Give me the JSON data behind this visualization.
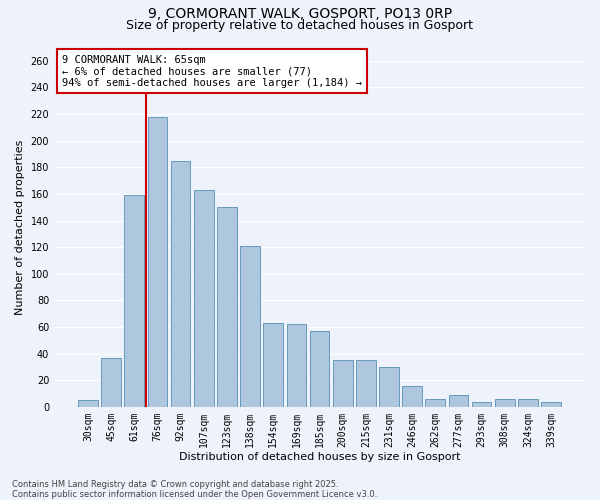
{
  "title1": "9, CORMORANT WALK, GOSPORT, PO13 0RP",
  "title2": "Size of property relative to detached houses in Gosport",
  "xlabel": "Distribution of detached houses by size in Gosport",
  "ylabel": "Number of detached properties",
  "categories": [
    "30sqm",
    "45sqm",
    "61sqm",
    "76sqm",
    "92sqm",
    "107sqm",
    "123sqm",
    "138sqm",
    "154sqm",
    "169sqm",
    "185sqm",
    "200sqm",
    "215sqm",
    "231sqm",
    "246sqm",
    "262sqm",
    "277sqm",
    "293sqm",
    "308sqm",
    "324sqm",
    "339sqm"
  ],
  "values": [
    5,
    37,
    159,
    218,
    185,
    163,
    150,
    121,
    63,
    62,
    57,
    35,
    35,
    30,
    16,
    6,
    9,
    4,
    6,
    6,
    4
  ],
  "bar_color": "#aec6de",
  "bar_edge_color": "#6699bb",
  "ref_line_color": "#cc0000",
  "annotation_text": "9 CORMORANT WALK: 65sqm\n← 6% of detached houses are smaller (77)\n94% of semi-detached houses are larger (1,184) →",
  "annotation_box_color": "white",
  "annotation_box_edge_color": "#cc0000",
  "ylim": [
    0,
    270
  ],
  "yticks": [
    0,
    20,
    40,
    60,
    80,
    100,
    120,
    140,
    160,
    180,
    200,
    220,
    240,
    260
  ],
  "footer": "Contains HM Land Registry data © Crown copyright and database right 2025.\nContains public sector information licensed under the Open Government Licence v3.0.",
  "bg_color": "#eef2fa",
  "grid_color": "#ffffff",
  "title_fontsize": 10,
  "subtitle_fontsize": 9,
  "axis_label_fontsize": 8,
  "tick_fontsize": 7,
  "footer_fontsize": 6,
  "annot_fontsize": 7.5
}
